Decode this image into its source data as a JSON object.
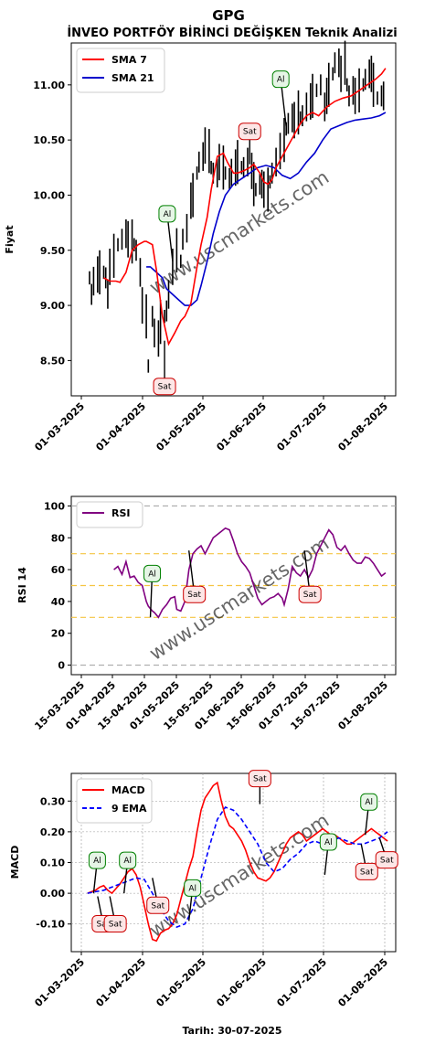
{
  "title": "GPG",
  "subtitle": "İNVEO PORTFÖY BİRİNCİ DEĞİŞKEN Teknik Analizi",
  "footer": "Tarih: 30-07-2025",
  "watermark": "www.uscmarkets.com",
  "colors": {
    "price": "#000000",
    "sma7": "#ff0000",
    "sma21": "#0000cc",
    "rsi": "#800080",
    "macd": "#ff0000",
    "ema": "#0000ff",
    "buy": "#008000",
    "sell": "#cc0000",
    "level": "#f5c542",
    "grid": "#aaaaaa"
  },
  "chart_data": [
    {
      "type": "line",
      "ylabel": "Fiyat",
      "ylim": [
        8.18,
        11.38
      ],
      "yticks": [
        "8.50",
        "9.00",
        "9.50",
        "10.00",
        "10.50",
        "11.00"
      ],
      "xticks": [
        "01-03-2025",
        "01-04-2025",
        "01-05-2025",
        "01-06-2025",
        "01-07-2025",
        "01-08-2025"
      ],
      "legend_position": "top-left",
      "series": [
        {
          "name": "SMA 7",
          "color": "#ff0000"
        },
        {
          "name": "SMA 21",
          "color": "#0000cc"
        }
      ],
      "price_day": [
        3,
        4,
        5,
        7,
        8,
        10,
        11,
        12,
        13,
        15,
        17,
        19,
        21,
        22,
        24,
        25,
        26,
        28,
        29,
        31,
        32,
        34,
        35,
        37,
        38,
        40,
        41,
        42,
        44,
        46,
        48,
        49,
        51,
        53,
        54,
        56,
        57,
        59,
        60,
        62,
        63,
        64,
        66,
        67,
        69,
        70,
        72,
        73,
        75,
        76,
        78,
        79,
        81,
        83,
        84,
        85,
        87,
        88,
        89,
        91,
        92,
        93,
        95,
        97,
        99,
        100,
        101,
        103,
        104,
        106,
        107,
        108,
        110,
        112,
        113,
        115,
        117,
        119,
        120,
        121,
        123,
        124,
        126,
        127,
        129,
        130,
        131,
        133,
        134,
        136,
        138,
        139,
        141,
        142,
        143,
        145,
        147,
        148
      ],
      "price": [
        9.25,
        9.1,
        9.22,
        9.28,
        9.3,
        9.3,
        9.25,
        9.1,
        9.35,
        9.45,
        9.55,
        9.6,
        9.65,
        9.6,
        9.58,
        9.55,
        9.5,
        9.3,
        9.0,
        8.9,
        8.45,
        8.9,
        8.75,
        8.7,
        8.85,
        8.9,
        8.95,
        9.1,
        9.35,
        9.5,
        9.4,
        9.6,
        9.7,
        9.95,
        10.0,
        10.2,
        10.3,
        10.35,
        10.45,
        10.4,
        10.25,
        10.2,
        10.2,
        10.3,
        10.25,
        10.2,
        10.15,
        10.2,
        10.25,
        10.3,
        10.25,
        10.25,
        10.3,
        10.22,
        10.1,
        10.05,
        10.1,
        10.1,
        10.05,
        10.05,
        10.12,
        10.2,
        10.3,
        10.4,
        10.5,
        10.6,
        10.65,
        10.7,
        10.68,
        10.75,
        10.7,
        10.72,
        10.8,
        10.85,
        10.9,
        10.95,
        11.0,
        10.8,
        10.9,
        11.0,
        11.1,
        11.2,
        11.2,
        11.1,
        11.2,
        11.0,
        10.9,
        10.95,
        10.9,
        10.95,
        11.0,
        11.05,
        11.1,
        11.1,
        11.0,
        10.88,
        10.9,
        10.9
      ],
      "sma7_day": [
        10,
        13,
        16,
        18,
        21,
        24,
        27,
        30,
        31,
        34,
        36,
        39,
        42,
        45,
        48,
        50,
        53,
        56,
        58,
        61,
        63,
        66,
        69,
        71,
        74,
        76,
        79,
        82,
        84,
        87,
        89,
        91,
        93,
        95,
        98,
        101,
        104,
        107,
        110,
        113,
        116,
        120,
        124,
        128,
        132,
        136,
        140,
        144,
        147,
        149
      ],
      "sma7": [
        9.25,
        9.22,
        9.22,
        9.21,
        9.3,
        9.5,
        9.55,
        9.58,
        9.58,
        9.55,
        9.32,
        8.9,
        8.65,
        8.75,
        8.86,
        8.9,
        9.02,
        9.35,
        9.55,
        9.8,
        10.05,
        10.35,
        10.38,
        10.3,
        10.2,
        10.2,
        10.22,
        10.25,
        10.28,
        10.2,
        10.12,
        10.1,
        10.14,
        10.25,
        10.35,
        10.45,
        10.55,
        10.65,
        10.72,
        10.75,
        10.72,
        10.8,
        10.85,
        10.88,
        10.9,
        10.95,
        11.0,
        11.05,
        11.1,
        11.15
      ],
      "sma21_day": [
        31,
        33,
        36,
        39,
        41,
        44,
        47,
        50,
        53,
        56,
        58,
        61,
        64,
        67,
        70,
        74,
        78,
        82,
        86,
        90,
        94,
        98,
        102,
        106,
        110,
        114,
        118,
        122,
        126,
        130,
        134,
        138,
        142,
        146,
        149
      ],
      "sma21": [
        9.35,
        9.35,
        9.3,
        9.25,
        9.15,
        9.1,
        9.05,
        9.0,
        9.0,
        9.05,
        9.18,
        9.4,
        9.65,
        9.85,
        10.0,
        10.1,
        10.15,
        10.2,
        10.25,
        10.27,
        10.25,
        10.18,
        10.15,
        10.2,
        10.3,
        10.38,
        10.5,
        10.6,
        10.63,
        10.66,
        10.68,
        10.69,
        10.7,
        10.72,
        10.75
      ],
      "signals": [
        {
          "day": 44,
          "value": 9.4,
          "label": "Al"
        },
        {
          "day": 40,
          "value": 8.68,
          "label": "Sat"
        },
        {
          "day": 100,
          "value": 10.62,
          "label": "Al"
        },
        {
          "day": 82,
          "value": 10.28,
          "label": "Sat"
        }
      ]
    },
    {
      "type": "line",
      "ylabel": "RSI 14",
      "ylim": [
        -6,
        106
      ],
      "yticks": [
        "0",
        "20",
        "40",
        "60",
        "80",
        "100"
      ],
      "xticks": [
        "15-03-2025",
        "01-04-2025",
        "15-04-2025",
        "01-05-2025",
        "15-05-2025",
        "01-06-2025",
        "15-06-2025",
        "01-07-2025",
        "15-07-2025",
        "01-08-2025"
      ],
      "legend_position": "top-left",
      "series": [
        {
          "name": "RSI",
          "color": "#800080"
        }
      ],
      "levels": [
        0,
        30,
        50,
        70,
        100
      ],
      "rsi_day": [
        15,
        17,
        19,
        21,
        23,
        25,
        27,
        29,
        31,
        32,
        34,
        35,
        37,
        39,
        41,
        43,
        45,
        46,
        48,
        50,
        52,
        54,
        56,
        58,
        60,
        62,
        64,
        66,
        68,
        70,
        72,
        74,
        76,
        78,
        80,
        82,
        84,
        86,
        88,
        90,
        92,
        94,
        96,
        98,
        99,
        101,
        103,
        105,
        107,
        109,
        111,
        113,
        115,
        117,
        119,
        121,
        123,
        125,
        127,
        129,
        131,
        133,
        135,
        137,
        139,
        141,
        143,
        145,
        147,
        149
      ],
      "rsi": [
        60,
        62,
        57,
        65,
        55,
        56,
        52,
        50,
        40,
        37,
        34,
        33,
        30,
        35,
        38,
        42,
        43,
        35,
        34,
        40,
        60,
        70,
        73,
        75,
        70,
        75,
        80,
        82,
        84,
        86,
        85,
        78,
        70,
        65,
        62,
        58,
        50,
        42,
        38,
        40,
        42,
        43,
        45,
        42,
        38,
        48,
        62,
        58,
        56,
        60,
        55,
        60,
        70,
        75,
        80,
        85,
        82,
        74,
        72,
        75,
        70,
        66,
        64,
        64,
        68,
        67,
        64,
        60,
        56,
        58
      ],
      "signals": [
        {
          "day": 33,
          "value": 30,
          "label": "Al"
        },
        {
          "day": 52,
          "value": 72,
          "label": "Sat"
        },
        {
          "day": 109,
          "value": 72,
          "label": "Sat"
        }
      ]
    },
    {
      "type": "line",
      "ylabel": "MACD",
      "ylim": [
        -0.19,
        0.39
      ],
      "yticks": [
        "-0.10",
        "0.00",
        "0.10",
        "0.20",
        "0.30"
      ],
      "xticks": [
        "01-03-2025",
        "01-04-2025",
        "01-05-2025",
        "01-06-2025",
        "01-07-2025",
        "01-08-2025"
      ],
      "legend_position": "top-left",
      "series": [
        {
          "name": "MACD",
          "color": "#ff0000"
        },
        {
          "name": "9 EMA",
          "color": "#0000ff"
        }
      ],
      "macd_day": [
        2,
        4,
        6,
        8,
        10,
        12,
        14,
        16,
        18,
        20,
        22,
        24,
        26,
        28,
        30,
        32,
        34,
        36,
        38,
        40,
        42,
        44,
        46,
        48,
        50,
        52,
        54,
        56,
        58,
        60,
        62,
        64,
        66,
        68,
        70,
        72,
        74,
        76,
        78,
        80,
        82,
        84,
        86,
        88,
        90,
        92,
        94,
        96,
        98,
        100,
        102,
        104,
        106,
        108,
        110,
        112,
        114,
        116,
        118,
        120,
        122,
        124,
        126,
        128,
        130,
        132,
        134,
        136,
        138,
        140,
        142,
        144,
        146,
        148,
        150
      ],
      "macd": [
        0.0,
        0.005,
        0.01,
        0.02,
        0.025,
        0.01,
        0.0,
        0.015,
        0.03,
        0.05,
        0.07,
        0.08,
        0.06,
        0.02,
        -0.04,
        -0.1,
        -0.15,
        -0.155,
        -0.13,
        -0.12,
        -0.115,
        -0.1,
        -0.07,
        -0.02,
        0.03,
        0.08,
        0.12,
        0.2,
        0.27,
        0.31,
        0.33,
        0.35,
        0.36,
        0.3,
        0.25,
        0.22,
        0.21,
        0.19,
        0.17,
        0.14,
        0.1,
        0.07,
        0.05,
        0.045,
        0.04,
        0.05,
        0.07,
        0.1,
        0.13,
        0.16,
        0.18,
        0.19,
        0.2,
        0.19,
        0.17,
        0.18,
        0.19,
        0.2,
        0.21,
        0.2,
        0.19,
        0.19,
        0.18,
        0.17,
        0.16,
        0.16,
        0.17,
        0.18,
        0.19,
        0.2,
        0.21,
        0.2,
        0.19,
        0.18,
        0.17
      ],
      "ema_day": [
        2,
        6,
        10,
        14,
        18,
        22,
        26,
        30,
        34,
        38,
        42,
        46,
        50,
        54,
        58,
        62,
        66,
        70,
        74,
        78,
        82,
        86,
        90,
        94,
        98,
        102,
        106,
        110,
        114,
        118,
        122,
        126,
        130,
        134,
        138,
        142,
        146,
        150
      ],
      "ema": [
        0.0,
        0.005,
        0.01,
        0.02,
        0.03,
        0.04,
        0.05,
        0.045,
        0.0,
        -0.05,
        -0.09,
        -0.11,
        -0.1,
        -0.05,
        0.05,
        0.15,
        0.24,
        0.28,
        0.27,
        0.24,
        0.2,
        0.16,
        0.1,
        0.07,
        0.08,
        0.11,
        0.13,
        0.16,
        0.17,
        0.16,
        0.17,
        0.18,
        0.17,
        0.16,
        0.16,
        0.17,
        0.18,
        0.2
      ],
      "signals": [
        {
          "day": 5,
          "value": 0.0,
          "label": "Al"
        },
        {
          "day": 20,
          "value": 0.0,
          "label": "Al"
        },
        {
          "day": 7,
          "value": -0.01,
          "label": "Sat"
        },
        {
          "day": 13,
          "value": -0.01,
          "label": "Sat"
        },
        {
          "day": 34,
          "value": 0.05,
          "label": "Sat"
        },
        {
          "day": 52,
          "value": -0.09,
          "label": "Al"
        },
        {
          "day": 87,
          "value": 0.29,
          "label": "Sat"
        },
        {
          "day": 119,
          "value": 0.06,
          "label": "Al"
        },
        {
          "day": 137,
          "value": 0.16,
          "label": "Sat"
        },
        {
          "day": 139,
          "value": 0.19,
          "label": "Al"
        },
        {
          "day": 146,
          "value": 0.18,
          "label": "Sat"
        }
      ]
    }
  ]
}
